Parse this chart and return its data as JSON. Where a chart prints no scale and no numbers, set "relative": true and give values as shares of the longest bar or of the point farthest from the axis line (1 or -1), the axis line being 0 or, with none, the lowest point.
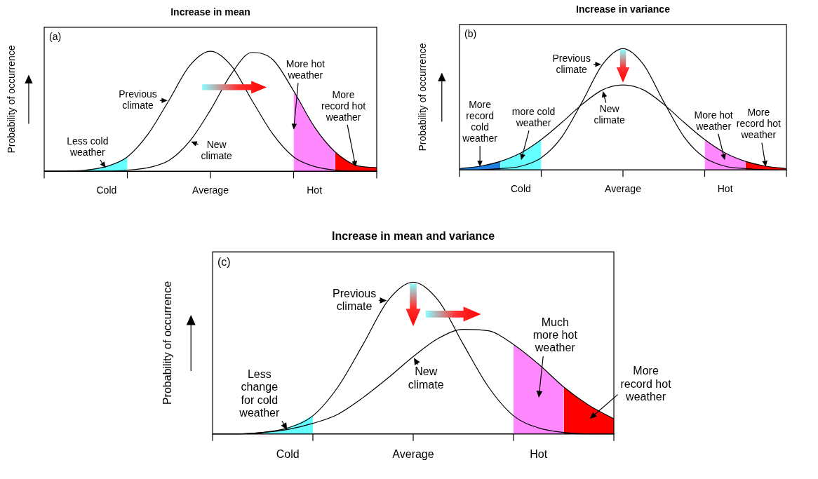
{
  "chart_data": [
    {
      "type": "line",
      "title": "Increase in mean",
      "ylabel": "Probability of occurrence",
      "relative": true,
      "tick_labels": "x",
      "annotations": [
        "(a)"
      ],
      "categories": [
        null,
        null,
        null,
        "Cold",
        null,
        null,
        null,
        null,
        "Average",
        null,
        null,
        null,
        null,
        "Hot",
        null,
        null,
        null
      ],
      "series": [
        {
          "type": "line",
          "name": "Previous climate",
          "color": "#000000",
          "values": [
            0,
            0,
            0.01,
            0.04,
            0.12,
            0.31,
            0.59,
            0.88,
            1,
            0.88,
            0.59,
            0.31,
            0.12,
            0.04,
            0.01,
            0,
            0
          ]
        },
        {
          "type": "line",
          "name": "New climate",
          "color": "#000000",
          "values": [
            0,
            0,
            0,
            0,
            0.01,
            0.03,
            0.09,
            0.25,
            0.51,
            0.81,
            0.99,
            0.93,
            0.67,
            0.37,
            0.16,
            0.05,
            0.03
          ]
        },
        {
          "type": "area",
          "name": "Less cold weather",
          "color": "#66ffff",
          "values": [
            null,
            null,
            0.01,
            0.04,
            0.12,
            null,
            null,
            null,
            null,
            null,
            null,
            null,
            null,
            null,
            null,
            null,
            null
          ]
        },
        {
          "type": "area",
          "name": "More hot weather",
          "color": "#ff88ff",
          "values": [
            null,
            null,
            null,
            null,
            null,
            null,
            null,
            null,
            null,
            null,
            null,
            null,
            0.67,
            0.37,
            0.16,
            null,
            null
          ]
        },
        {
          "type": "area",
          "name": "More record hot weather",
          "color": "#ff0000",
          "values": [
            null,
            null,
            null,
            null,
            null,
            null,
            null,
            null,
            null,
            null,
            null,
            null,
            null,
            null,
            0.16,
            0.05,
            0.03
          ]
        }
      ]
    },
    {
      "type": "line",
      "title": "Increase in variance",
      "ylabel": "Probability of occurrence",
      "relative": true,
      "tick_labels": "x",
      "annotations": [
        "(b)"
      ],
      "categories": [
        null,
        null,
        null,
        "Cold",
        null,
        null,
        null,
        null,
        "Average",
        null,
        null,
        null,
        null,
        "Hot",
        null,
        null,
        null
      ],
      "series": [
        {
          "type": "line",
          "name": "Previous climate",
          "color": "#000000",
          "values": [
            null,
            0,
            0.01,
            0.03,
            0.1,
            0.27,
            0.56,
            0.87,
            1,
            0.87,
            0.56,
            0.27,
            0.1,
            0.03,
            0.01,
            0,
            null
          ]
        },
        {
          "type": "line",
          "name": "New climate",
          "color": "#000000",
          "values": [
            0.01,
            0.03,
            0.07,
            0.14,
            0.25,
            0.39,
            0.54,
            0.66,
            0.7,
            0.66,
            0.54,
            0.39,
            0.25,
            0.14,
            0.07,
            0.03,
            0.01
          ]
        },
        {
          "type": "area",
          "name": "More record cold weather",
          "color": "#1e7fe0",
          "values": [
            0.01,
            0.03,
            0.07,
            null,
            null,
            null,
            null,
            null,
            null,
            null,
            null,
            null,
            null,
            null,
            null,
            null,
            null
          ]
        },
        {
          "type": "area",
          "name": "more cold weather",
          "color": "#66ffff",
          "values": [
            null,
            null,
            0.07,
            0.14,
            0.25,
            null,
            null,
            null,
            null,
            null,
            null,
            null,
            null,
            null,
            null,
            null,
            null
          ]
        },
        {
          "type": "area",
          "name": "More hot weather",
          "color": "#ff88ff",
          "values": [
            null,
            null,
            null,
            null,
            null,
            null,
            null,
            null,
            null,
            null,
            null,
            null,
            0.25,
            0.14,
            0.07,
            null,
            null
          ]
        },
        {
          "type": "area",
          "name": "More record hot weather",
          "color": "#ff0000",
          "values": [
            null,
            null,
            null,
            null,
            null,
            null,
            null,
            null,
            null,
            null,
            null,
            null,
            null,
            null,
            0.07,
            0.03,
            0.01
          ]
        }
      ]
    },
    {
      "type": "line",
      "title": "Increase in mean and variance",
      "ylabel": "Probability of occurrence",
      "relative": true,
      "tick_labels": "x",
      "annotations": [
        "(c)"
      ],
      "categories": [
        null,
        null,
        null,
        "Cold",
        null,
        null,
        null,
        null,
        "Average",
        null,
        null,
        null,
        null,
        "Hot",
        null,
        null,
        null
      ],
      "series": [
        {
          "type": "line",
          "name": "Previous climate",
          "color": "#000000",
          "values": [
            0,
            0,
            0.01,
            0.04,
            0.12,
            0.31,
            0.59,
            0.88,
            1,
            0.88,
            0.59,
            0.31,
            0.12,
            0.04,
            0.01,
            0,
            0
          ]
        },
        {
          "type": "line",
          "name": "New climate",
          "color": "#000000",
          "values": [
            0,
            0,
            0.01,
            0.03,
            0.07,
            0.13,
            0.24,
            0.37,
            0.51,
            0.63,
            0.69,
            0.68,
            0.59,
            0.46,
            0.31,
            0.19,
            0.1
          ]
        },
        {
          "type": "area",
          "name": "Less change for cold weather",
          "color": "#66ffff",
          "values": [
            null,
            null,
            0.01,
            0.04,
            0.12,
            null,
            null,
            null,
            null,
            null,
            null,
            null,
            null,
            null,
            null,
            null,
            null
          ]
        },
        {
          "type": "area",
          "name": "Much more hot weather",
          "color": "#ff88ff",
          "values": [
            null,
            null,
            null,
            null,
            null,
            null,
            null,
            null,
            null,
            null,
            null,
            null,
            0.59,
            0.46,
            0.31,
            null,
            null
          ]
        },
        {
          "type": "area",
          "name": "More record hot weather",
          "color": "#ff0000",
          "values": [
            null,
            null,
            null,
            null,
            null,
            null,
            null,
            null,
            null,
            null,
            null,
            null,
            null,
            null,
            0.31,
            0.19,
            0.1
          ]
        }
      ]
    }
  ]
}
